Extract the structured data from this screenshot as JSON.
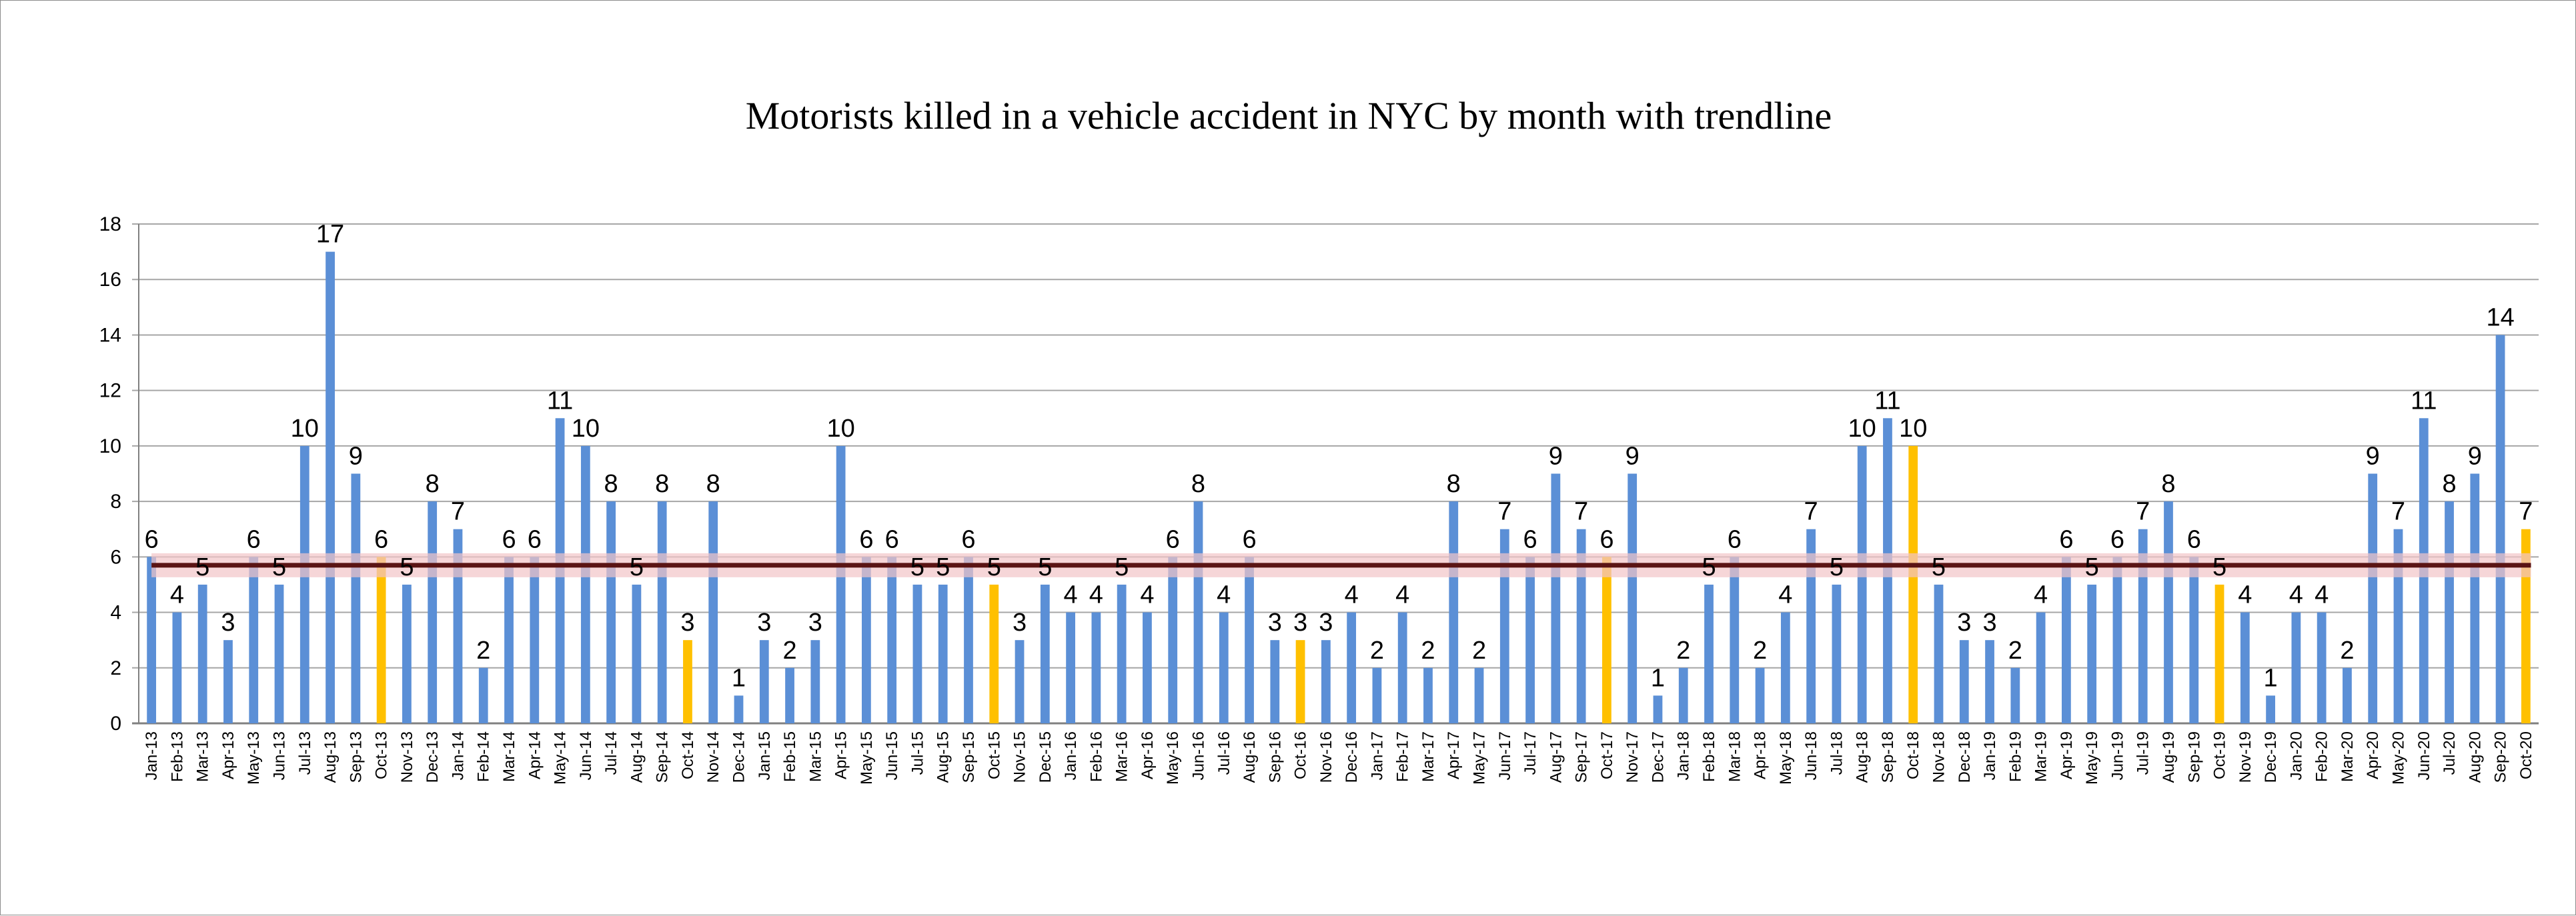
{
  "chart_data": {
    "type": "bar",
    "title": "Motorists killed in a vehicle accident in NYC by month with trendline",
    "xlabel": "",
    "ylabel": "",
    "ylim": [
      0,
      18
    ],
    "yticks": [
      "0",
      "2",
      "4",
      "6",
      "8",
      "10",
      "12",
      "14",
      "16",
      "18"
    ],
    "grid": true,
    "legend": "none",
    "colors": {
      "bar": "#5B8FD6",
      "highlight": "#FFC000",
      "trendline": "#5A1414",
      "trend_glow": "#F2C4C8",
      "grid": "#A6A6A6",
      "axis": "#808080"
    },
    "trendline_value": 5.7,
    "categories": [
      "Jan-13",
      "Feb-13",
      "Mar-13",
      "Apr-13",
      "May-13",
      "Jun-13",
      "Jul-13",
      "Aug-13",
      "Sep-13",
      "Oct-13",
      "Nov-13",
      "Dec-13",
      "Jan-14",
      "Feb-14",
      "Mar-14",
      "Apr-14",
      "May-14",
      "Jun-14",
      "Jul-14",
      "Aug-14",
      "Sep-14",
      "Oct-14",
      "Nov-14",
      "Dec-14",
      "Jan-15",
      "Feb-15",
      "Mar-15",
      "Apr-15",
      "May-15",
      "Jun-15",
      "Jul-15",
      "Aug-15",
      "Sep-15",
      "Oct-15",
      "Nov-15",
      "Dec-15",
      "Jan-16",
      "Feb-16",
      "Mar-16",
      "Apr-16",
      "May-16",
      "Jun-16",
      "Jul-16",
      "Aug-16",
      "Sep-16",
      "Oct-16",
      "Nov-16",
      "Dec-16",
      "Jan-17",
      "Feb-17",
      "Mar-17",
      "Apr-17",
      "May-17",
      "Jun-17",
      "Jul-17",
      "Aug-17",
      "Sep-17",
      "Oct-17",
      "Nov-17",
      "Dec-17",
      "Jan-18",
      "Feb-18",
      "Mar-18",
      "Apr-18",
      "May-18",
      "Jun-18",
      "Jul-18",
      "Aug-18",
      "Sep-18",
      "Oct-18",
      "Nov-18",
      "Dec-18",
      "Jan-19",
      "Feb-19",
      "Mar-19",
      "Apr-19",
      "May-19",
      "Jun-19",
      "Jul-19",
      "Aug-19",
      "Sep-19",
      "Oct-19",
      "Nov-19",
      "Dec-19",
      "Jan-20",
      "Feb-20",
      "Mar-20",
      "Apr-20",
      "May-20",
      "Jun-20",
      "Jul-20",
      "Aug-20",
      "Sep-20",
      "Oct-20"
    ],
    "values": [
      6,
      4,
      5,
      3,
      6,
      5,
      10,
      17,
      9,
      6,
      5,
      8,
      7,
      2,
      6,
      6,
      11,
      10,
      8,
      5,
      8,
      3,
      8,
      1,
      3,
      2,
      3,
      10,
      6,
      6,
      5,
      5,
      6,
      5,
      3,
      5,
      4,
      4,
      5,
      4,
      6,
      8,
      4,
      6,
      3,
      3,
      3,
      4,
      2,
      4,
      2,
      8,
      2,
      7,
      6,
      9,
      7,
      6,
      9,
      1,
      2,
      5,
      6,
      2,
      4,
      7,
      5,
      10,
      11,
      10,
      5,
      3,
      3,
      2,
      4,
      6,
      5,
      6,
      7,
      8,
      6,
      5,
      4,
      1,
      4,
      4,
      2,
      9,
      7,
      11,
      8,
      9,
      14,
      7
    ],
    "highlighted_categories": [
      "Oct-13",
      "Oct-14",
      "Oct-15",
      "Oct-16",
      "Oct-17",
      "Oct-18",
      "Oct-19",
      "Oct-20"
    ]
  }
}
